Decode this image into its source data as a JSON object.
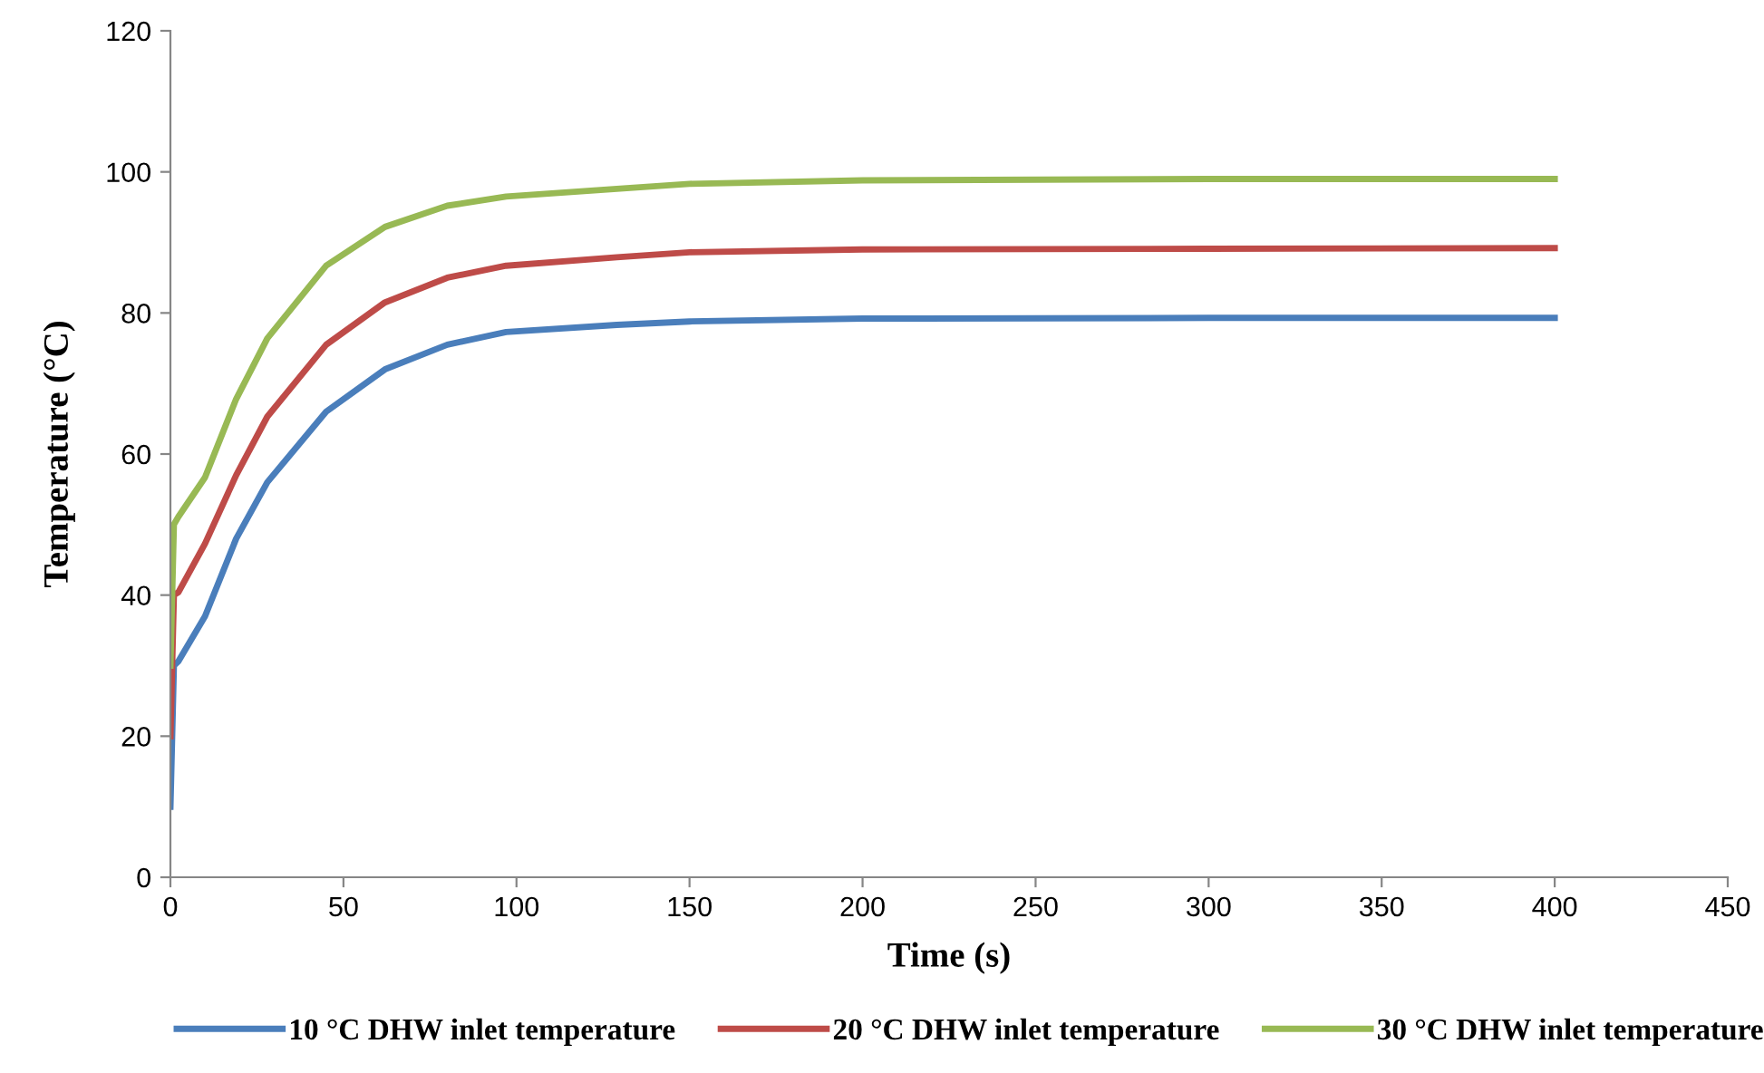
{
  "chart_data": {
    "type": "line",
    "xlabel": "Time (s)",
    "ylabel": "Temperature (°C)",
    "xlim": [
      0,
      450
    ],
    "xticks": [
      0,
      50,
      100,
      150,
      200,
      250,
      300,
      350,
      400,
      450
    ],
    "ylim": [
      0,
      120
    ],
    "yticks": [
      0,
      20,
      40,
      60,
      80,
      100,
      120
    ],
    "grid": false,
    "legend": "bottom",
    "marker": "none",
    "line_style": "solid",
    "series": [
      {
        "name": "10 °C DHW inlet temperature",
        "color": "#4a7ebb",
        "x": [
          0,
          1,
          2.3,
          10,
          19,
          28,
          45,
          62,
          80,
          97,
          129,
          150,
          200,
          300,
          400
        ],
        "values": [
          10,
          30,
          30.6,
          37,
          48,
          56,
          66,
          72,
          75.5,
          77.3,
          78.3,
          78.8,
          79.2,
          79.3,
          79.3
        ]
      },
      {
        "name": "20 °C DHW inlet temperature",
        "color": "#be4b48",
        "x": [
          0,
          1,
          2.3,
          10,
          19,
          28,
          45,
          62,
          80,
          97,
          129,
          150,
          200,
          300,
          400
        ],
        "values": [
          20,
          40,
          40.4,
          47.3,
          57,
          65.3,
          75.5,
          81.5,
          85,
          86.7,
          87.9,
          88.6,
          89,
          89.1,
          89.2
        ]
      },
      {
        "name": "30 °C DHW inlet temperature",
        "color": "#98b954",
        "x": [
          0,
          1,
          2.3,
          10,
          19,
          28,
          45,
          62,
          80,
          97,
          129,
          150,
          200,
          300,
          400
        ],
        "values": [
          30,
          50,
          51.1,
          56.7,
          67.8,
          76.4,
          86.7,
          92.2,
          95.2,
          96.5,
          97.6,
          98.3,
          98.8,
          99,
          99
        ]
      }
    ]
  }
}
